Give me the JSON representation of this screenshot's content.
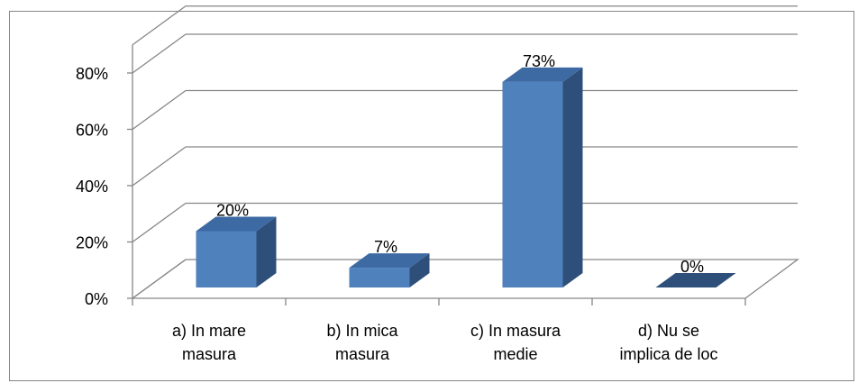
{
  "chart_data": {
    "type": "bar",
    "style": "3d-column",
    "categories": [
      [
        "a) In mare",
        "masura"
      ],
      [
        "b) In mica",
        "masura"
      ],
      [
        "c) In masura",
        "medie"
      ],
      [
        "d) Nu se",
        "implica de loc"
      ]
    ],
    "values": [
      20,
      7,
      73,
      0
    ],
    "data_labels": [
      "20%",
      "7%",
      "73%",
      "0%"
    ],
    "y_ticks": [
      "0%",
      "20%",
      "40%",
      "60%",
      "80%"
    ],
    "ylim": [
      0,
      90
    ],
    "grid": true,
    "legend": "none",
    "colors": {
      "bar_front": "#4f81bd",
      "bar_side": "#2e4f79",
      "bar_top": "#3d6aa3",
      "grid": "#868686",
      "frame": "#868686"
    }
  }
}
